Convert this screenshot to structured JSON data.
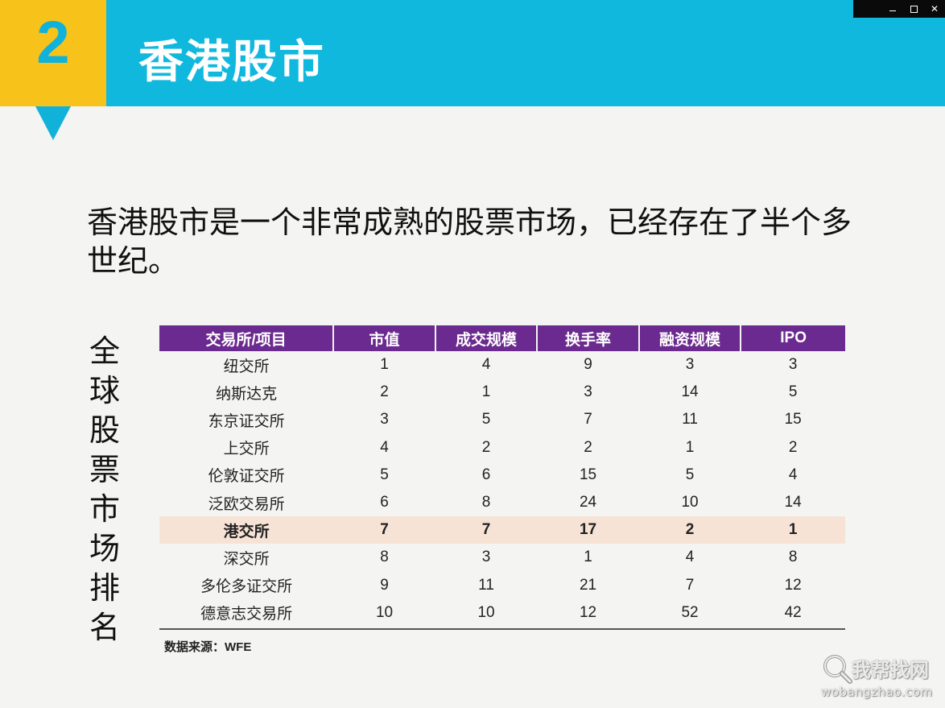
{
  "header": {
    "number": "2",
    "title": "香港股市"
  },
  "intro": "香港股市是一个非常成熟的股票市场，已经存在了半个多世纪。",
  "side_label": "全球股票市场排名",
  "table": {
    "columns": [
      "交易所/项目",
      "市值",
      "成交规模",
      "换手率",
      "融资规模",
      "IPO"
    ],
    "rows": [
      [
        "纽交所",
        "1",
        "4",
        "9",
        "3",
        "3"
      ],
      [
        "纳斯达克",
        "2",
        "1",
        "3",
        "14",
        "5"
      ],
      [
        "东京证交所",
        "3",
        "5",
        "7",
        "11",
        "15"
      ],
      [
        "上交所",
        "4",
        "2",
        "2",
        "1",
        "2"
      ],
      [
        "伦敦证交所",
        "5",
        "6",
        "15",
        "5",
        "4"
      ],
      [
        "泛欧交易所",
        "6",
        "8",
        "24",
        "10",
        "14"
      ],
      [
        "港交所",
        "7",
        "7",
        "17",
        "2",
        "1"
      ],
      [
        "深交所",
        "8",
        "3",
        "1",
        "4",
        "8"
      ],
      [
        "多伦多证交所",
        "9",
        "11",
        "21",
        "7",
        "12"
      ],
      [
        "德意志交易所",
        "10",
        "10",
        "12",
        "52",
        "42"
      ]
    ],
    "highlight_row": 6
  },
  "source": "数据来源：WFE",
  "watermark": {
    "cn": "我帮找网",
    "en": "wobangzhao.com"
  },
  "colors": {
    "header_cyan": "#11b8de",
    "header_yellow": "#f7c21a",
    "table_header": "#6b2a8f",
    "highlight": "#f7e3d6"
  },
  "icons": [
    "minimize-icon",
    "maximize-icon",
    "close-icon",
    "magnifier-icon"
  ]
}
